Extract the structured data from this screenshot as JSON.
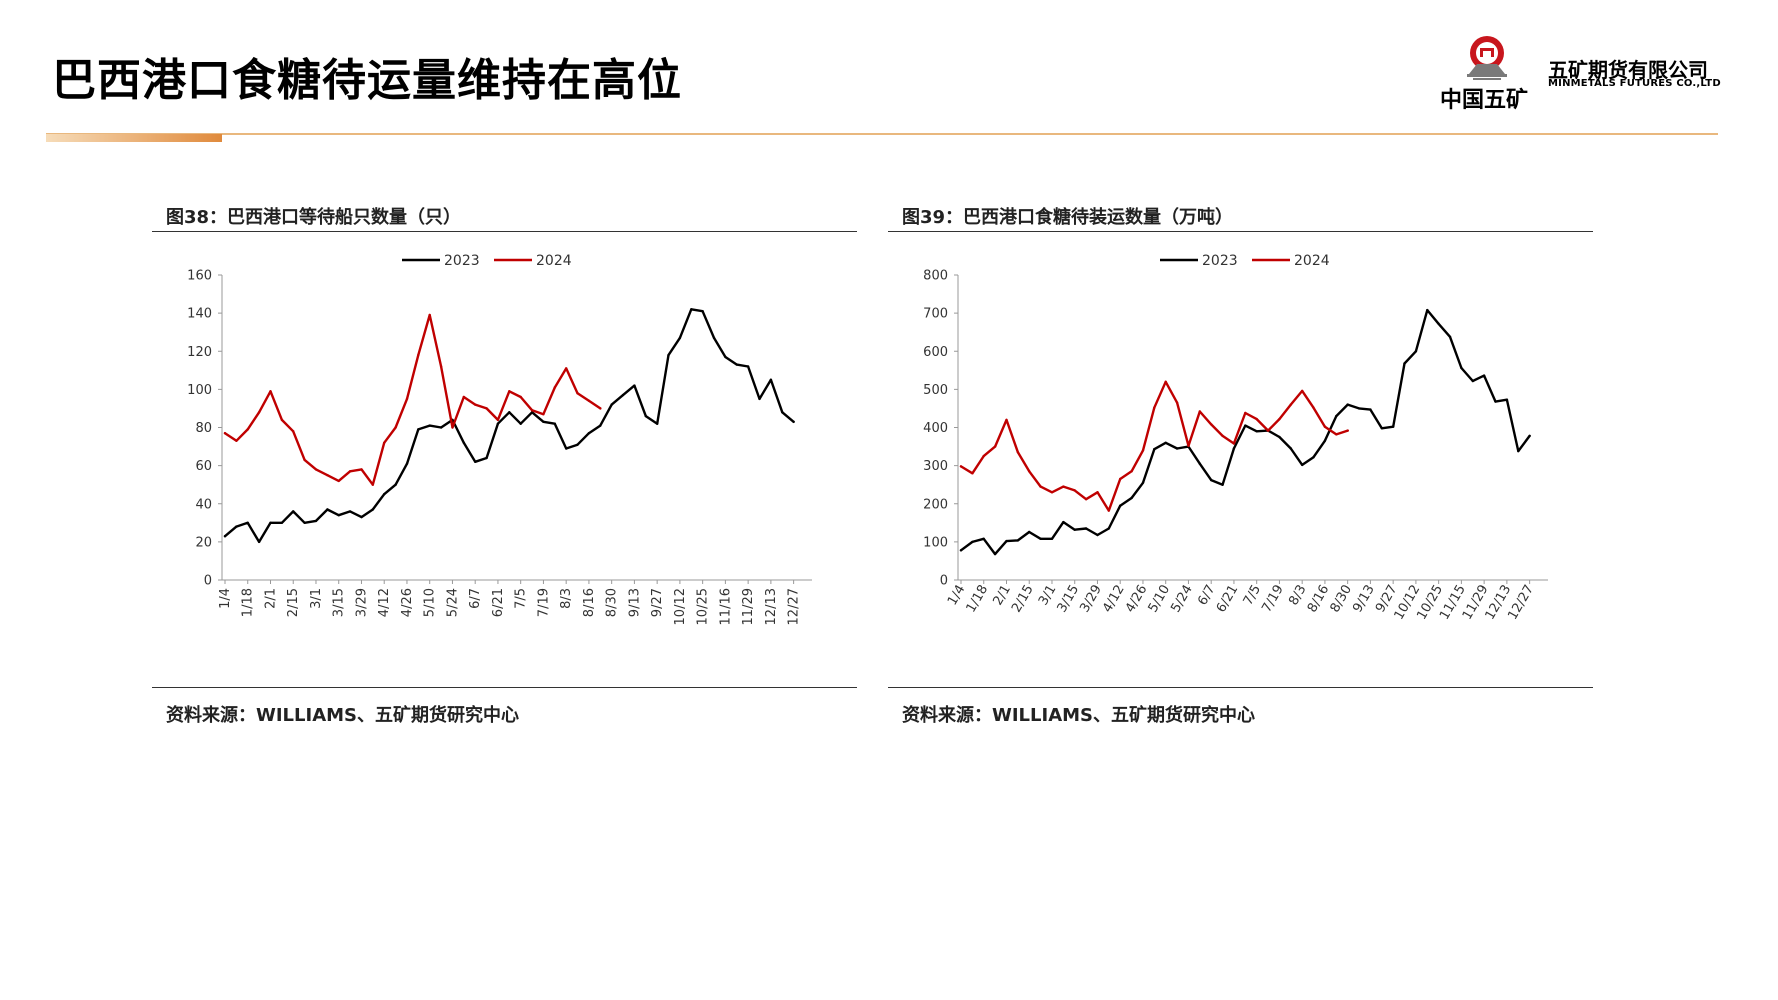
{
  "page": {
    "title": "巴西港口食糖待运量维持在高位"
  },
  "logo": {
    "cn_name": "中国五矿",
    "company": "五矿期货有限公司",
    "company_en": "MINMETALS FUTURES CO.,LTD"
  },
  "colors": {
    "series_2023": "#000000",
    "series_2024": "#c00000",
    "accent": "#e08a3c"
  },
  "chart_data": [
    {
      "type": "line",
      "title": "图38：巴西港口等待船只数量（只）",
      "source": "资料来源：WILLIAMS、五矿期货研究中心",
      "ylim": [
        0,
        160
      ],
      "yticks": [
        0,
        20,
        40,
        60,
        80,
        100,
        120,
        140,
        160
      ],
      "xlabel": "",
      "ylabel": "",
      "legend_position": "top",
      "x_tick_labels": [
        "1/4",
        "1/18",
        "2/1",
        "2/15",
        "3/1",
        "3/15",
        "3/29",
        "4/12",
        "4/26",
        "5/10",
        "5/24",
        "6/7",
        "6/21",
        "7/5",
        "7/19",
        "8/3",
        "8/16",
        "8/30",
        "9/13",
        "9/27",
        "10/12",
        "10/25",
        "11/16",
        "11/29",
        "12/13",
        "12/27"
      ],
      "series": [
        {
          "name": "2023",
          "values": [
            23,
            28,
            30,
            20,
            30,
            30,
            36,
            30,
            31,
            37,
            34,
            36,
            33,
            37,
            45,
            50,
            61,
            79,
            81,
            80,
            84,
            72,
            62,
            64,
            82,
            88,
            82,
            88,
            83,
            82,
            69,
            71,
            77,
            81,
            92,
            97,
            102,
            86,
            82,
            118,
            127,
            142,
            141,
            127,
            117,
            113,
            112,
            95,
            105,
            88,
            83
          ]
        },
        {
          "name": "2024",
          "values": [
            77,
            73,
            79,
            88,
            99,
            84,
            78,
            63,
            58,
            55,
            52,
            57,
            58,
            50,
            72,
            80,
            95,
            118,
            139,
            112,
            80,
            96,
            92,
            90,
            84,
            99,
            96,
            89,
            87,
            101,
            111,
            98,
            94,
            90
          ]
        }
      ]
    },
    {
      "type": "line",
      "title": "图39：巴西港口食糖待装运数量（万吨）",
      "source": "资料来源：WILLIAMS、五矿期货研究中心",
      "ylim": [
        0,
        800
      ],
      "yticks": [
        0,
        100,
        200,
        300,
        400,
        500,
        600,
        700,
        800
      ],
      "xlabel": "",
      "ylabel": "",
      "legend_position": "top",
      "x_tick_labels": [
        "1/4",
        "1/18",
        "2/1",
        "2/15",
        "3/1",
        "3/15",
        "3/29",
        "4/12",
        "4/26",
        "5/10",
        "5/24",
        "6/7",
        "6/21",
        "7/5",
        "7/19",
        "8/3",
        "8/16",
        "8/30",
        "9/13",
        "9/27",
        "10/12",
        "10/25",
        "11/15",
        "11/29",
        "12/13",
        "12/27"
      ],
      "series": [
        {
          "name": "2023",
          "values": [
            78,
            100,
            108,
            68,
            102,
            104,
            126,
            108,
            108,
            152,
            132,
            135,
            118,
            135,
            195,
            215,
            255,
            343,
            360,
            345,
            350,
            305,
            262,
            250,
            345,
            405,
            390,
            392,
            375,
            345,
            302,
            322,
            365,
            430,
            460,
            450,
            447,
            398,
            402,
            568,
            600,
            708,
            672,
            638,
            556,
            522,
            536,
            468,
            473,
            338,
            378
          ]
        },
        {
          "name": "2024",
          "values": [
            298,
            280,
            325,
            350,
            420,
            335,
            285,
            245,
            230,
            245,
            235,
            212,
            230,
            182,
            265,
            285,
            340,
            452,
            520,
            465,
            352,
            442,
            408,
            378,
            358,
            438,
            422,
            392,
            422,
            460,
            496,
            452,
            402,
            382,
            392
          ]
        }
      ]
    }
  ]
}
